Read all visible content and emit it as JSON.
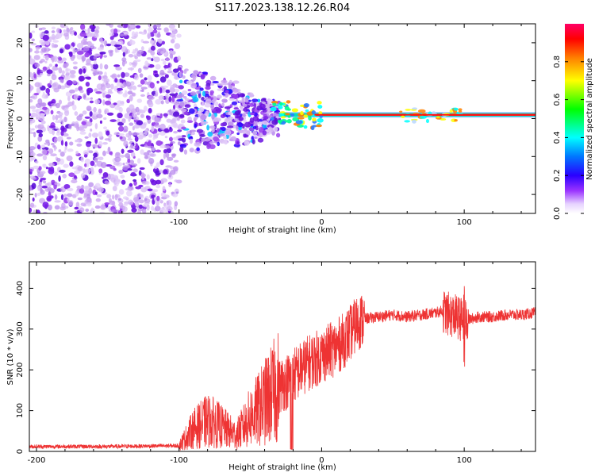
{
  "title": "S117.2023.138.12.26.R04",
  "chart_data": [
    {
      "type": "heatmap",
      "name": "spectrogram",
      "xlabel": "Height of straight line (km)",
      "ylabel": "Frequency (Hz)",
      "xlim": [
        -205,
        150
      ],
      "ylim": [
        -25,
        25
      ],
      "x_ticks": [
        -200,
        -100,
        0,
        100
      ],
      "y_ticks": [
        -20,
        -10,
        0,
        10,
        20
      ],
      "tick_labels_x": [
        "-200",
        "-100",
        "0",
        "100"
      ],
      "tick_labels_y": [
        "-20",
        "-10",
        "0",
        "10",
        "20"
      ],
      "colorbar": {
        "label": "Normalized spectral amplitude",
        "range": [
          0,
          1
        ],
        "ticks": [
          "0.0",
          "0.2",
          "0.4",
          "0.6",
          "0.8"
        ],
        "tick_values": [
          0,
          0.2,
          0.4,
          0.6,
          0.8
        ]
      },
      "regions": [
        {
          "x_range": [
            -205,
            -100
          ],
          "freq_range": [
            -25,
            25
          ],
          "amplitude": 0.1,
          "description": "broadband noise"
        },
        {
          "x_range": [
            -100,
            -30
          ],
          "freq_range": [
            -8,
            12
          ],
          "amplitude": 0.25,
          "description": "scattered signal"
        },
        {
          "x_range": [
            -30,
            150
          ],
          "freq_center": 1,
          "amplitude": 0.9,
          "description": "carrier line"
        }
      ]
    },
    {
      "type": "line",
      "name": "snr",
      "xlabel": "Height of straight line (km)",
      "ylabel": "SNR (10 * v/v)",
      "xlim": [
        -205,
        150
      ],
      "ylim": [
        0,
        465
      ],
      "x_ticks": [
        -200,
        -100,
        0,
        100
      ],
      "y_ticks": [
        0,
        100,
        200,
        300,
        400
      ],
      "tick_labels_x": [
        "-200",
        "-100",
        "0",
        "100"
      ],
      "tick_labels_y": [
        "0",
        "100",
        "200",
        "300",
        "400"
      ],
      "series": [
        {
          "name": "SNR",
          "color": "#ee3333",
          "x": [
            -205,
            -150,
            -100,
            -95,
            -90,
            -85,
            -80,
            -75,
            -70,
            -65,
            -60,
            -55,
            -50,
            -45,
            -40,
            -35,
            -30,
            -25,
            -20,
            -15,
            -10,
            -5,
            0,
            5,
            10,
            15,
            20,
            25,
            30,
            40,
            50,
            60,
            70,
            80,
            85,
            90,
            95,
            100,
            105,
            110,
            120,
            130,
            140,
            150
          ],
          "y": [
            12,
            12,
            14,
            35,
            55,
            65,
            75,
            70,
            60,
            50,
            40,
            60,
            85,
            100,
            120,
            140,
            160,
            170,
            185,
            200,
            215,
            225,
            235,
            245,
            255,
            270,
            290,
            315,
            325,
            330,
            335,
            330,
            335,
            340,
            345,
            335,
            330,
            320,
            325,
            330,
            330,
            335,
            335,
            340
          ]
        }
      ]
    }
  ]
}
